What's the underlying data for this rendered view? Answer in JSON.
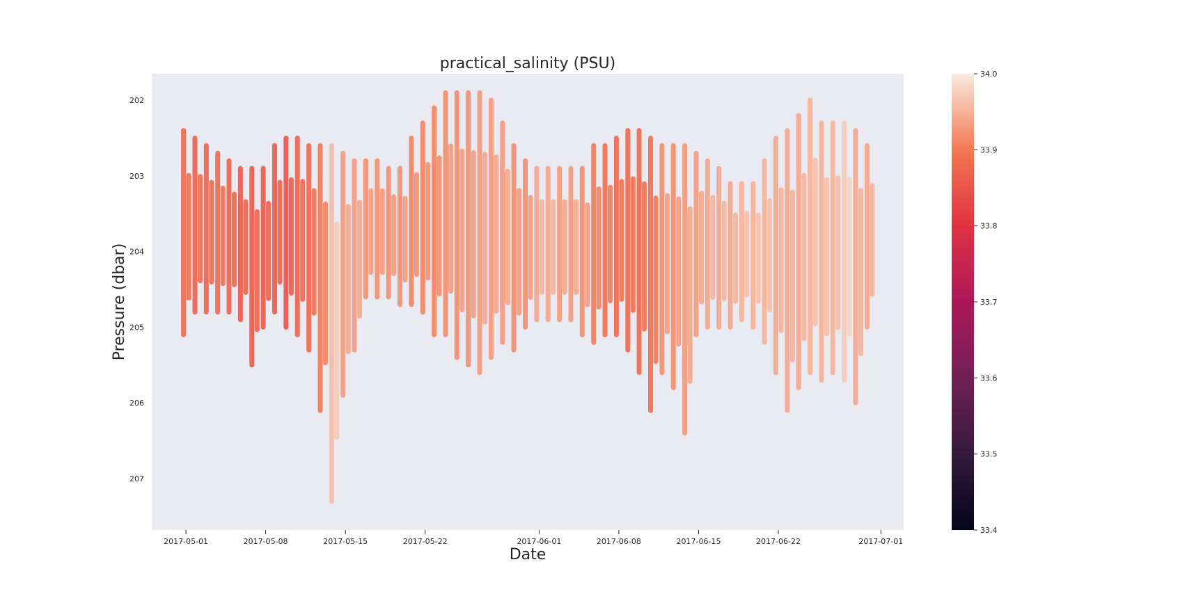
{
  "chart_data": {
    "type": "scatter",
    "title": "practical_salinity (PSU)",
    "xlabel": "Date",
    "ylabel": "Pressure (dbar)",
    "x_range": [
      "2017-04-28",
      "2017-07-03"
    ],
    "ylim": [
      201.65,
      207.68
    ],
    "y_inverted": true,
    "grid": false,
    "x_ticks": [
      "2017-05-01",
      "2017-05-08",
      "2017-05-15",
      "2017-05-22",
      "2017-06-01",
      "2017-06-08",
      "2017-06-15",
      "2017-06-22",
      "2017-07-01"
    ],
    "y_ticks": [
      202,
      203,
      204,
      205,
      206,
      207
    ],
    "colorbar": {
      "label": "practical_salinity (PSU)",
      "range": [
        33.4,
        34.0
      ],
      "ticks": [
        33.4,
        33.5,
        33.6,
        33.7,
        33.8,
        33.9,
        34.0
      ],
      "colormap": "rocket"
    },
    "series": [
      {
        "x": [
          "2017-05-01",
          "2017-05-02",
          "2017-05-03",
          "2017-05-04",
          "2017-05-05",
          "2017-05-06",
          "2017-05-07",
          "2017-05-08",
          "2017-05-09",
          "2017-05-10",
          "2017-05-11",
          "2017-05-12",
          "2017-05-13",
          "2017-05-14",
          "2017-05-15",
          "2017-05-16",
          "2017-05-17",
          "2017-05-18",
          "2017-05-19",
          "2017-05-20",
          "2017-05-21",
          "2017-05-22",
          "2017-05-23",
          "2017-05-24",
          "2017-05-25",
          "2017-05-26",
          "2017-05-27",
          "2017-05-28",
          "2017-05-29",
          "2017-05-30",
          "2017-05-31",
          "2017-06-01",
          "2017-06-02",
          "2017-06-03",
          "2017-06-04",
          "2017-06-05",
          "2017-06-06",
          "2017-06-07",
          "2017-06-08",
          "2017-06-09",
          "2017-06-10",
          "2017-06-11",
          "2017-06-12",
          "2017-06-13",
          "2017-06-14",
          "2017-06-15",
          "2017-06-16",
          "2017-06-17",
          "2017-06-18",
          "2017-06-19",
          "2017-06-20",
          "2017-06-21",
          "2017-06-22",
          "2017-06-23",
          "2017-06-24",
          "2017-06-25",
          "2017-06-26",
          "2017-06-27",
          "2017-06-28",
          "2017-06-29",
          "2017-06-30"
        ],
        "p_min": [
          202.4,
          202.5,
          202.6,
          202.7,
          202.8,
          202.9,
          202.9,
          202.9,
          202.6,
          202.5,
          202.5,
          202.6,
          202.6,
          202.6,
          202.7,
          202.8,
          202.8,
          202.8,
          202.9,
          202.9,
          202.5,
          202.3,
          202.1,
          201.9,
          201.9,
          201.9,
          201.9,
          202.0,
          202.3,
          202.6,
          202.8,
          202.9,
          202.9,
          202.9,
          202.9,
          202.9,
          202.6,
          202.6,
          202.5,
          202.4,
          202.4,
          202.5,
          202.6,
          202.6,
          202.6,
          202.7,
          202.8,
          202.9,
          203.1,
          203.1,
          203.1,
          202.8,
          202.5,
          202.4,
          202.2,
          202.0,
          202.3,
          202.3,
          202.3,
          202.4,
          202.6
        ],
        "p_max": [
          205.1,
          204.8,
          204.8,
          204.8,
          204.8,
          204.9,
          205.5,
          205.0,
          204.8,
          205.0,
          205.1,
          205.3,
          206.1,
          207.3,
          205.9,
          205.3,
          204.6,
          204.6,
          204.6,
          204.7,
          204.7,
          204.8,
          205.1,
          205.1,
          205.4,
          205.5,
          205.6,
          205.4,
          205.2,
          205.3,
          205.0,
          204.9,
          204.9,
          204.9,
          204.9,
          205.1,
          205.2,
          205.1,
          205.1,
          205.3,
          205.6,
          206.1,
          205.6,
          205.8,
          206.4,
          205.1,
          205.0,
          205.0,
          205.0,
          204.9,
          205.0,
          205.2,
          205.6,
          206.1,
          205.8,
          205.6,
          205.7,
          205.6,
          205.7,
          206.0,
          205.0
        ],
        "salinity": [
          33.88,
          33.87,
          33.87,
          33.88,
          33.87,
          33.86,
          33.86,
          33.86,
          33.86,
          33.85,
          33.87,
          33.88,
          33.9,
          33.96,
          33.93,
          33.93,
          33.92,
          33.92,
          33.92,
          33.92,
          33.91,
          33.91,
          33.91,
          33.92,
          33.92,
          33.92,
          33.93,
          33.93,
          33.93,
          33.92,
          33.92,
          33.94,
          33.94,
          33.93,
          33.93,
          33.92,
          33.9,
          33.89,
          33.88,
          33.88,
          33.88,
          33.89,
          33.92,
          33.92,
          33.93,
          33.93,
          33.94,
          33.94,
          33.94,
          33.95,
          33.95,
          33.95,
          33.94,
          33.94,
          33.94,
          33.95,
          33.95,
          33.95,
          33.97,
          33.94,
          33.94
        ]
      }
    ]
  }
}
